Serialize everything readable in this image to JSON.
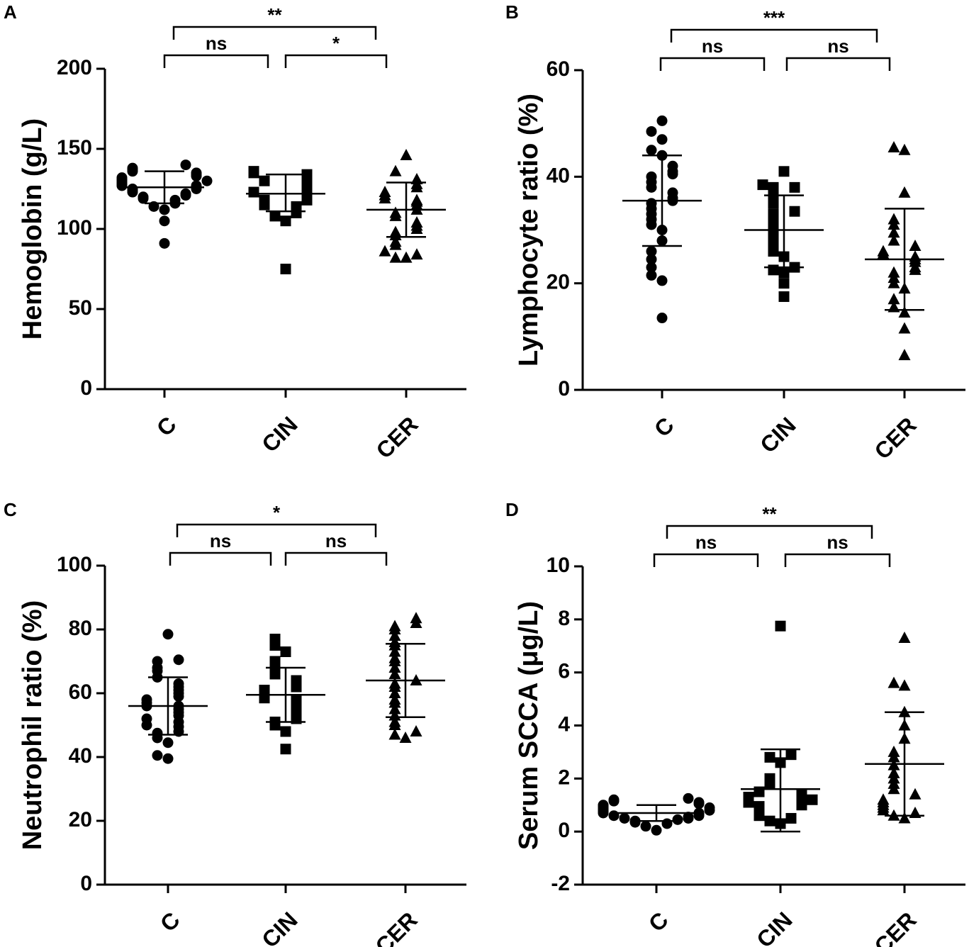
{
  "chart_data": [
    {
      "type": "scatter",
      "panel": "A",
      "ylabel": "Hemoglobin (g/L)",
      "ylim": [
        0,
        200
      ],
      "yticks": [
        "0",
        "50",
        "100",
        "150",
        "200"
      ],
      "categories": [
        "C",
        "CIN",
        "CER"
      ],
      "groups": [
        {
          "name": "C",
          "marker": "circle",
          "mean": 126,
          "sd_low": 116,
          "sd_high": 136,
          "values": [
            91,
            105,
            112,
            114,
            116,
            118,
            119,
            120,
            121,
            122,
            123,
            124,
            125,
            125,
            126,
            127,
            127,
            128,
            129,
            130,
            130,
            131,
            132,
            133,
            134,
            135,
            136,
            137,
            138,
            140
          ]
        },
        {
          "name": "CIN",
          "marker": "square",
          "mean": 122,
          "sd_low": 111,
          "sd_high": 134,
          "values": [
            75,
            105,
            108,
            110,
            112,
            114,
            115,
            116,
            118,
            118,
            120,
            121,
            122,
            123,
            124,
            126,
            127,
            128,
            130,
            131,
            132,
            133,
            134,
            135,
            136
          ]
        },
        {
          "name": "CER",
          "marker": "triangle",
          "mean": 112,
          "sd_low": 95,
          "sd_high": 129,
          "values": [
            82,
            82,
            84,
            86,
            90,
            92,
            96,
            98,
            100,
            102,
            104,
            108,
            110,
            112,
            115,
            117,
            118,
            119,
            121,
            123,
            126,
            128,
            131,
            136,
            146
          ]
        }
      ],
      "comparisons": [
        {
          "from": "C",
          "to": "CIN",
          "label": "ns",
          "level": 1
        },
        {
          "from": "CIN",
          "to": "CER",
          "label": "*",
          "level": 1
        },
        {
          "from": "C",
          "to": "CER",
          "label": "**",
          "level": 2
        }
      ]
    },
    {
      "type": "scatter",
      "panel": "B",
      "ylabel": "Lymphocyte ratio (%)",
      "ylim": [
        0,
        60
      ],
      "yticks": [
        "0",
        "20",
        "40",
        "60"
      ],
      "categories": [
        "C",
        "CIN",
        "CER"
      ],
      "groups": [
        {
          "name": "C",
          "marker": "circle",
          "mean": 35.5,
          "sd_low": 27,
          "sd_high": 44,
          "values": [
            13.5,
            20.5,
            21.5,
            23,
            24.5,
            26,
            28,
            30,
            31,
            32,
            33,
            34,
            35,
            35.5,
            36,
            37,
            38,
            39,
            40,
            40.5,
            41,
            42,
            44,
            45,
            47,
            48.5,
            50.5
          ]
        },
        {
          "name": "CIN",
          "marker": "square",
          "mean": 30,
          "sd_low": 23,
          "sd_high": 36.5,
          "values": [
            17.5,
            20,
            22,
            22.5,
            23,
            25,
            26,
            27,
            28,
            29,
            30,
            31,
            32,
            33,
            33.5,
            35,
            36,
            37,
            38,
            38,
            38.5,
            41
          ]
        },
        {
          "name": "CER",
          "marker": "triangle",
          "mean": 24.5,
          "sd_low": 15,
          "sd_high": 34,
          "values": [
            6.5,
            11.5,
            14.5,
            15.5,
            17,
            19,
            20,
            21,
            22,
            22.5,
            23,
            24,
            24.5,
            25,
            25.5,
            26,
            27,
            28,
            29.5,
            31,
            32,
            37,
            45,
            45.5
          ]
        }
      ],
      "comparisons": [
        {
          "from": "C",
          "to": "CIN",
          "label": "ns",
          "level": 1
        },
        {
          "from": "CIN",
          "to": "CER",
          "label": "ns",
          "level": 1
        },
        {
          "from": "C",
          "to": "CER",
          "label": "***",
          "level": 2
        }
      ]
    },
    {
      "type": "scatter",
      "panel": "C",
      "ylabel": "Neutrophil ratio (%)",
      "ylim": [
        0,
        100
      ],
      "yticks": [
        "0",
        "20",
        "40",
        "60",
        "80",
        "100"
      ],
      "categories": [
        "C",
        "CIN",
        "CER"
      ],
      "groups": [
        {
          "name": "C",
          "marker": "circle",
          "mean": 56,
          "sd_low": 47,
          "sd_high": 65,
          "values": [
            39.5,
            40.5,
            44.5,
            46,
            47.5,
            48,
            49.5,
            50,
            51,
            52,
            53,
            54,
            55,
            56,
            56,
            57,
            58,
            59,
            60,
            61,
            62,
            63,
            65,
            67,
            68,
            70,
            70.5,
            78.5
          ]
        },
        {
          "name": "CIN",
          "marker": "square",
          "mean": 59.5,
          "sd_low": 51,
          "sd_high": 68,
          "values": [
            42.5,
            48,
            50,
            51,
            52,
            53,
            54,
            55,
            56,
            57,
            58,
            58.5,
            59,
            60,
            61,
            62,
            63,
            64,
            66,
            68,
            70,
            73,
            75,
            77
          ]
        },
        {
          "name": "CER",
          "marker": "triangle",
          "mean": 64,
          "sd_low": 52.5,
          "sd_high": 75.5,
          "values": [
            46,
            47,
            48,
            50,
            51,
            53,
            55,
            57,
            58,
            60,
            62,
            63,
            64,
            66,
            68,
            70,
            71,
            73,
            75,
            76,
            78,
            80,
            81,
            82,
            83.5
          ]
        }
      ],
      "comparisons": [
        {
          "from": "C",
          "to": "CIN",
          "label": "ns",
          "level": 1
        },
        {
          "from": "CIN",
          "to": "CER",
          "label": "ns",
          "level": 1
        },
        {
          "from": "C",
          "to": "CER",
          "label": "*",
          "level": 2
        }
      ]
    },
    {
      "type": "scatter",
      "panel": "D",
      "ylabel": "Serum SCCA (μg/L)",
      "ylim": [
        -2,
        10
      ],
      "yticks": [
        "-2",
        "0",
        "2",
        "4",
        "6",
        "8",
        "10"
      ],
      "categories": [
        "C",
        "CIN",
        "CER"
      ],
      "groups": [
        {
          "name": "C",
          "marker": "circle",
          "mean": 0.7,
          "sd_low": 0.4,
          "sd_high": 1.0,
          "values": [
            0.05,
            0.2,
            0.3,
            0.35,
            0.4,
            0.45,
            0.5,
            0.5,
            0.55,
            0.6,
            0.6,
            0.65,
            0.7,
            0.7,
            0.75,
            0.8,
            0.8,
            0.85,
            0.9,
            0.9,
            0.95,
            1.0,
            1.05,
            1.1,
            1.15,
            1.2,
            1.25
          ]
        },
        {
          "name": "CIN",
          "marker": "square",
          "mean": 1.6,
          "sd_low": 0.0,
          "sd_high": 3.1,
          "values": [
            0.3,
            0.4,
            0.5,
            0.6,
            0.7,
            0.8,
            0.9,
            0.95,
            1.0,
            1.05,
            1.1,
            1.15,
            1.2,
            1.3,
            1.4,
            1.5,
            1.8,
            2.0,
            2.6,
            2.8,
            2.9,
            7.75
          ]
        },
        {
          "name": "CER",
          "marker": "triangle",
          "mean": 2.55,
          "sd_low": 0.6,
          "sd_high": 4.5,
          "values": [
            0.5,
            0.6,
            0.7,
            0.8,
            0.9,
            1.0,
            1.1,
            1.2,
            1.4,
            1.6,
            1.8,
            2.0,
            2.2,
            2.5,
            2.8,
            3.0,
            3.5,
            4.0,
            4.5,
            5.5,
            5.6,
            7.3
          ]
        }
      ],
      "comparisons": [
        {
          "from": "C",
          "to": "CIN",
          "label": "ns",
          "level": 1
        },
        {
          "from": "CIN",
          "to": "CER",
          "label": "ns",
          "level": 1
        },
        {
          "from": "C",
          "to": "CER",
          "label": "**",
          "level": 2
        }
      ]
    }
  ]
}
